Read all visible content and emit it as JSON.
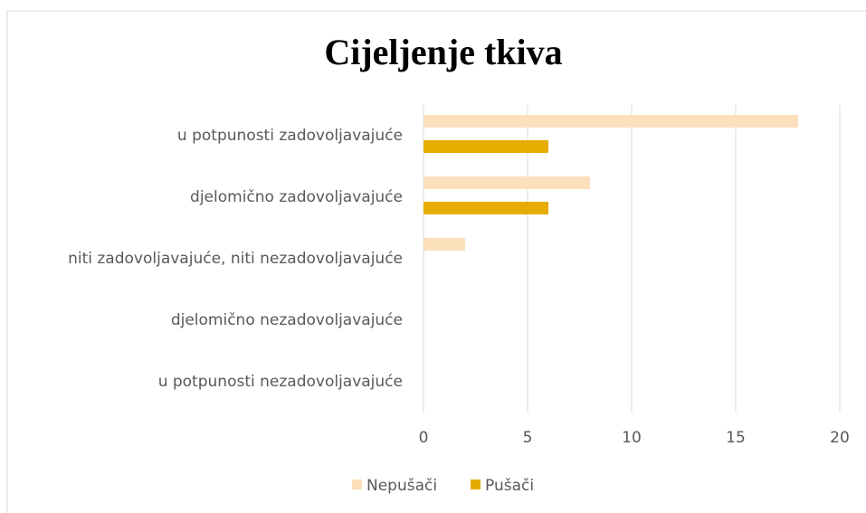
{
  "chart_data": {
    "type": "barh",
    "title": "Cijeljenje tkiva",
    "categories": [
      "u potpunosti zadovoljavajuće",
      "djelomično zadovoljavajuće",
      "niti zadovoljavajuće, niti nezadovoljavajuće",
      "djelomično nezadovoljavajuće",
      "u potpunosti nezadovoljavajuće"
    ],
    "series": [
      {
        "name": "Nepušači",
        "color": "#fce0bb",
        "values": [
          18,
          8,
          2,
          0,
          0
        ]
      },
      {
        "name": "Pušači",
        "color": "#e6ac00",
        "values": [
          6,
          6,
          0,
          0,
          0
        ]
      }
    ],
    "xlim": [
      0,
      20
    ],
    "xticks": [
      0,
      5,
      10,
      15,
      20
    ],
    "grid": true,
    "legend": "bottom"
  }
}
